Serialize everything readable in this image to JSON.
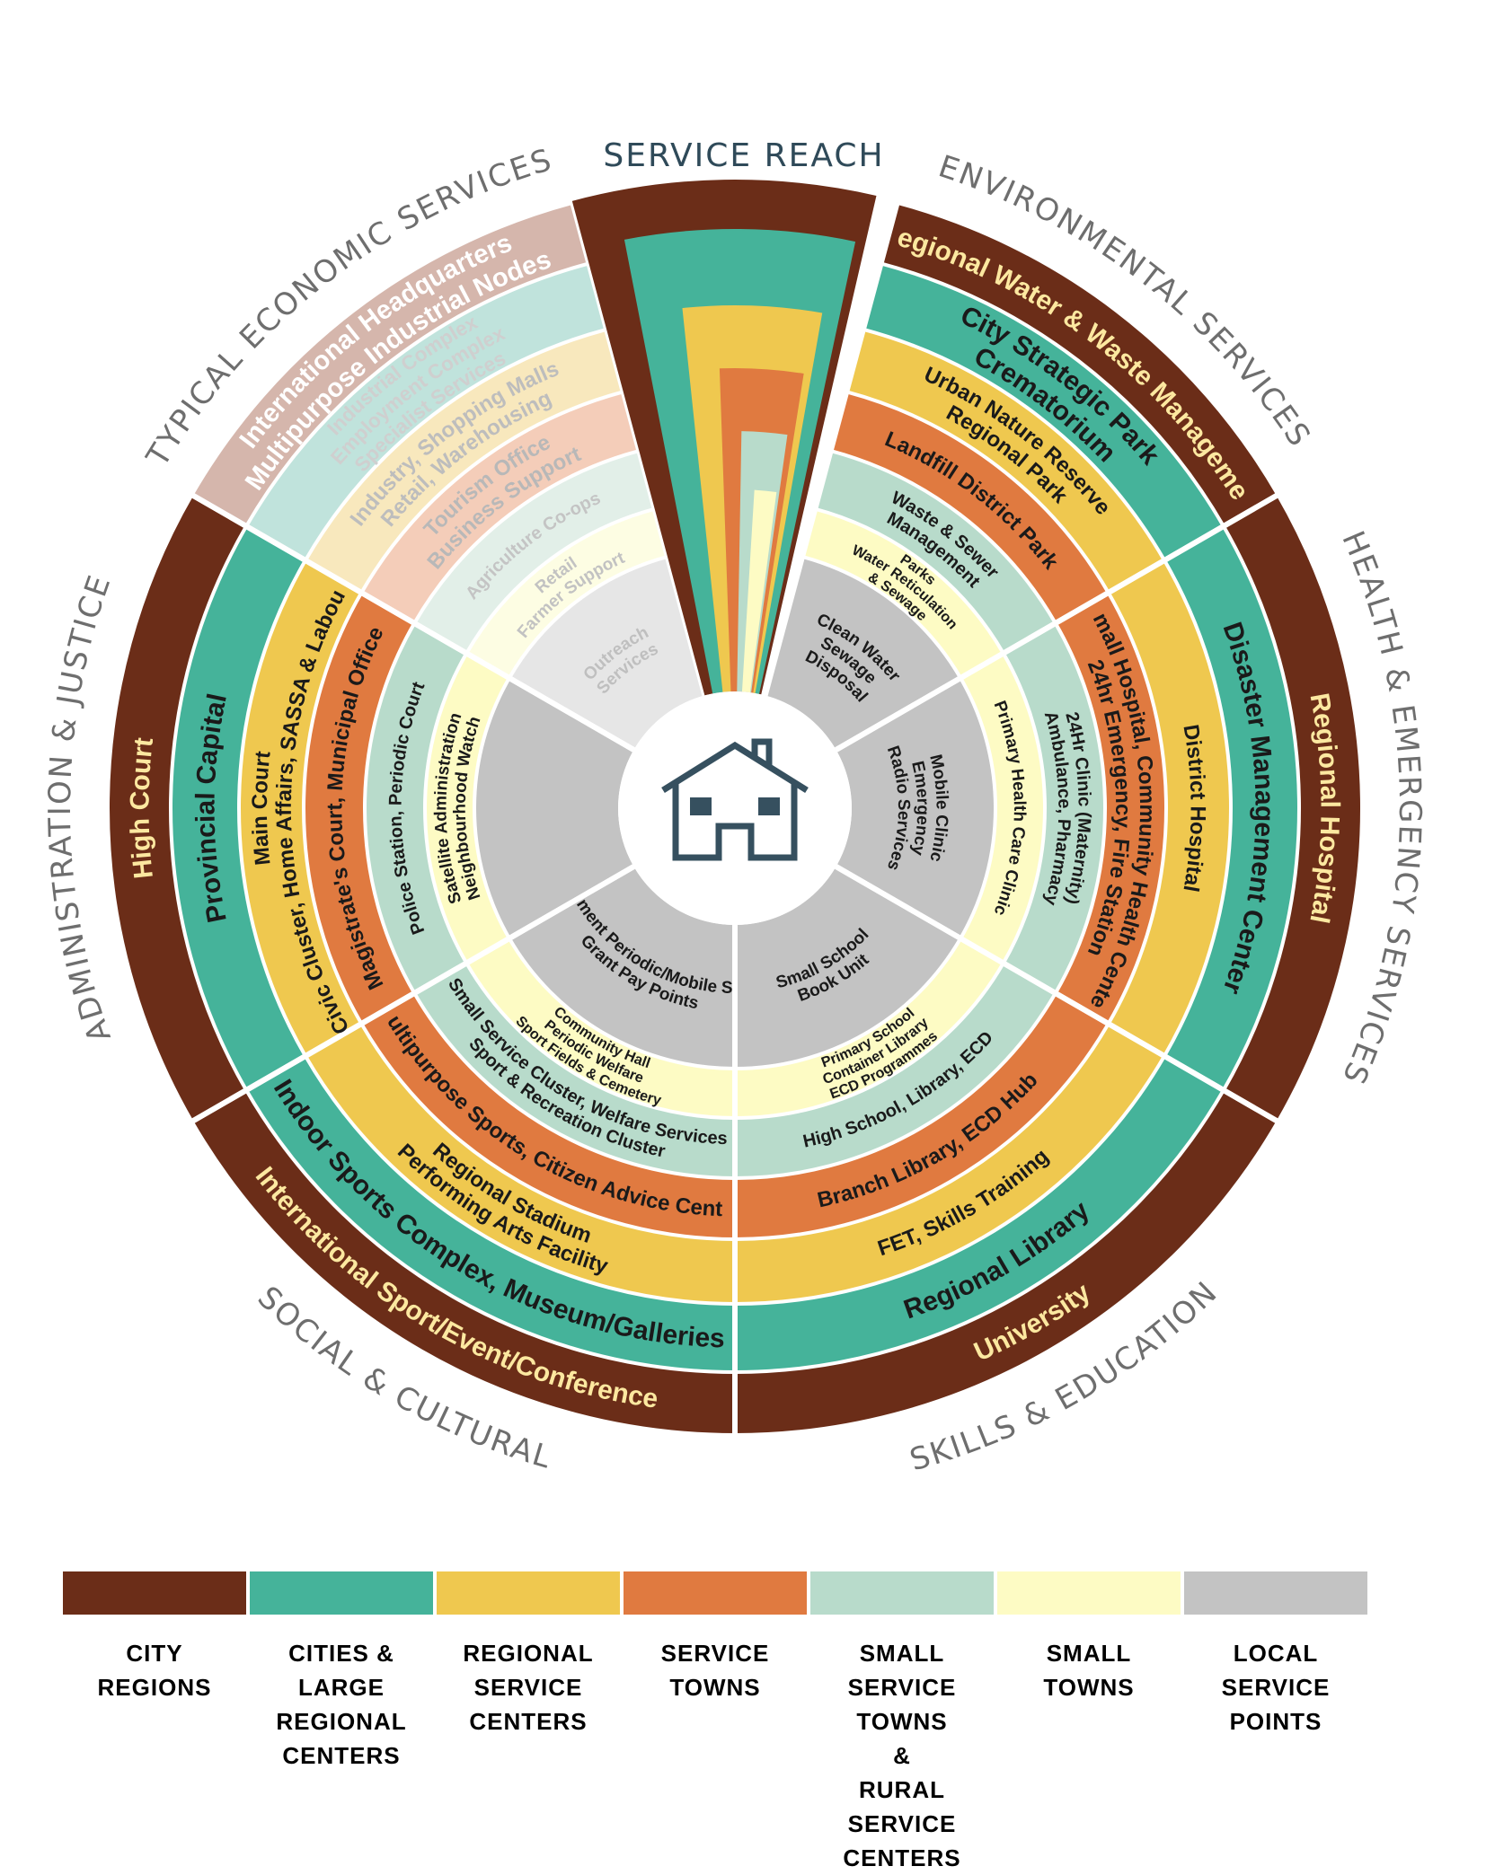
{
  "title": "SERVICE REACH",
  "colors": {
    "city_regions": "#6b2d18",
    "cities_large_regional_centers": "#45b39a",
    "regional_service_centers": "#efc84f",
    "service_towns": "#e07a40",
    "small_service_towns_rural": "#b8dbcb",
    "small_towns": "#fdfbc4",
    "local_service_points": "#c3c3c3"
  },
  "legend": [
    {
      "label": [
        "CITY",
        "REGIONS"
      ],
      "color": "#6b2d18"
    },
    {
      "label": [
        "CITIES &",
        "LARGE",
        "REGIONAL",
        "CENTERS"
      ],
      "color": "#45b39a"
    },
    {
      "label": [
        "REGIONAL",
        "SERVICE",
        "CENTERS"
      ],
      "color": "#efc84f"
    },
    {
      "label": [
        "SERVICE",
        "TOWNS"
      ],
      "color": "#e07a40"
    },
    {
      "label": [
        "SMALL",
        "SERVICE TOWNS",
        "&",
        "RURAL",
        "SERVICE",
        "CENTERS"
      ],
      "color": "#b8dbcb"
    },
    {
      "label": [
        "SMALL",
        "TOWNS"
      ],
      "color": "#fdfbc4"
    },
    {
      "label": [
        "LOCAL",
        "SERVICE",
        "POINTS"
      ],
      "color": "#c3c3c3"
    }
  ],
  "sectors": [
    {
      "name": "TYPICAL ECONOMIC SERVICES",
      "muted": true,
      "rings": [
        [
          "International Headquarters",
          "Multipurpose Industrial Nodes"
        ],
        [
          "Industrial Complex",
          "Employment Complex",
          "Specialist Services"
        ],
        [
          "Industry, Shopping Malls",
          "Retail, Warehousing"
        ],
        [
          "Tourism Office",
          "Business Support"
        ],
        [
          "Agriculture Co-ops"
        ],
        [
          "Retail",
          "Farmer Support"
        ],
        [
          "Outreach",
          "Services"
        ]
      ]
    },
    {
      "name": "ENVIRONMENTAL SERVICES",
      "rings": [
        [
          "Regional Water & Waste Management"
        ],
        [
          "City Strategic Park",
          "Crematorium"
        ],
        [
          "Urban Nature Reserve",
          "Regional Park"
        ],
        [
          "Landfill District Park"
        ],
        [
          "Waste & Sewer",
          "Management"
        ],
        [
          "Parks",
          "Water Reticulation",
          "& Sewage"
        ],
        [
          "Clean Water",
          "Sewage",
          "Disposal"
        ]
      ]
    },
    {
      "name": "HEALTH & EMERGENCY SERVICES",
      "rings": [
        [
          "Regional Hospital"
        ],
        [
          "Disaster Management Center"
        ],
        [
          "District Hospital"
        ],
        [
          "Small Hospital, Community Health Center",
          "24hr Emergency, Fire Station"
        ],
        [
          "24Hr Clinic (Maternity)",
          "Ambulance, Pharmacy"
        ],
        [
          "Primary Health Care Clinic"
        ],
        [
          "Mobile Clinic",
          "Emergency",
          "Radio Services"
        ]
      ]
    },
    {
      "name": "SKILLS & EDUCATION",
      "rings": [
        [
          "University"
        ],
        [
          "Regional Library"
        ],
        [
          "FET, Skills Training"
        ],
        [
          "Branch Library, ECD Hub"
        ],
        [
          "High School, Library, ECD"
        ],
        [
          "Primary School",
          "Container Library",
          "ECD Programmes"
        ],
        [
          "Small School",
          "Book Unit"
        ]
      ]
    },
    {
      "name": "SOCIAL & CULTURAL",
      "rings": [
        [
          "International Sport/Event/Conference"
        ],
        [
          "Indoor Sports Complex, Museum/Galleries"
        ],
        [
          "Regional Stadium",
          "Performing Arts Facility"
        ],
        [
          "Multipurpose Sports, Citizen Advice Center"
        ],
        [
          "Small Service Cluster, Welfare Services",
          "Sport & Recreation Cluster"
        ],
        [
          "Community Hall",
          "Periodic Welfare",
          "Sport Fields & Cemetery"
        ],
        [
          "Government Periodic/Mobile Services",
          "Grant Pay Points"
        ]
      ]
    },
    {
      "name": "ADMINISTRATION & JUSTICE",
      "rings": [
        [
          "High Court"
        ],
        [
          "Provincial Capital"
        ],
        [
          "Main Court",
          "Civic Cluster, Home Affairs, SASSA & Labour"
        ],
        [
          "Magistrate's Court, Municipal Office"
        ],
        [
          "Police Station, Periodic Court"
        ],
        [
          "Satellite Administration",
          "Neighbourhood Watch"
        ],
        []
      ]
    }
  ],
  "center_icon": "house-icon"
}
